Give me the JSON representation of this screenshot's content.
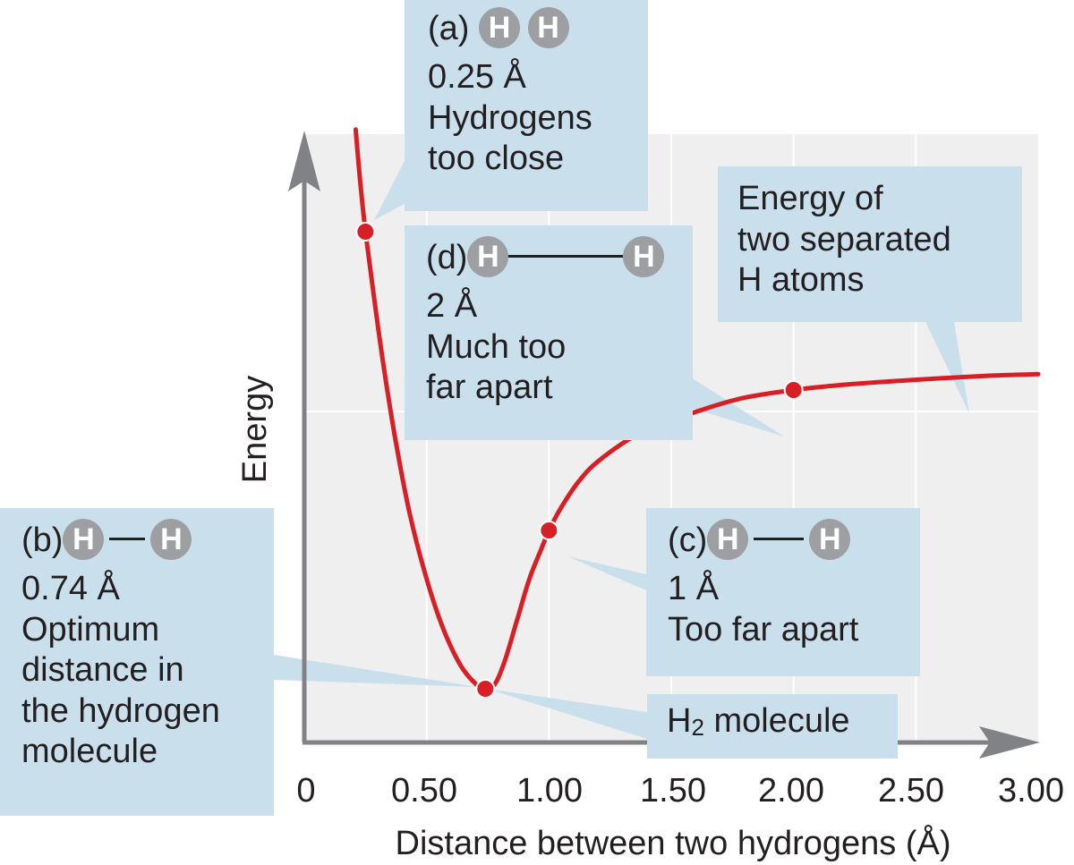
{
  "chart_data": {
    "type": "line",
    "xlabel": "Distance between two hydrogens (Å)",
    "ylabel": "Energy",
    "x_ticks": [
      "0",
      "0.50",
      "1.00",
      "1.50",
      "2.00",
      "2.50",
      "3.00"
    ],
    "xlim": [
      0,
      3.0
    ],
    "ylim": [
      0,
      1
    ],
    "grid": true,
    "series": [
      {
        "x": [
          0.21,
          0.23,
          0.25,
          0.28,
          0.32,
          0.37,
          0.43,
          0.5,
          0.57,
          0.64,
          0.7,
          0.74,
          0.78,
          0.82,
          0.87,
          0.92,
          0.97,
          1.0,
          1.05,
          1.12,
          1.2,
          1.35,
          1.5,
          1.65,
          1.8,
          2.0,
          2.2,
          2.4,
          2.6,
          2.8,
          3.0
        ],
        "y": [
          1.12,
          1.01,
          0.92,
          0.81,
          0.67,
          0.52,
          0.37,
          0.24,
          0.14,
          0.07,
          0.035,
          0.025,
          0.035,
          0.08,
          0.16,
          0.24,
          0.3,
          0.335,
          0.38,
          0.43,
          0.47,
          0.52,
          0.55,
          0.575,
          0.595,
          0.61,
          0.62,
          0.627,
          0.633,
          0.638,
          0.641
        ]
      }
    ],
    "points": [
      {
        "x": 0.25,
        "y": 0.92
      },
      {
        "x": 0.74,
        "y": 0.025
      },
      {
        "x": 1.0,
        "y": 0.335
      },
      {
        "x": 2.0,
        "y": 0.61
      }
    ]
  },
  "callouts": {
    "a": {
      "label": "(a)",
      "atom1": "H",
      "atom2": "H",
      "distance": "0.25 Å",
      "lines": [
        "Hydrogens",
        "too close"
      ]
    },
    "b": {
      "label": "(b)",
      "atom1": "H",
      "atom2": "H",
      "distance": "0.74 Å",
      "lines": [
        "Optimum",
        "distance in",
        "the hydrogen",
        "molecule"
      ]
    },
    "c": {
      "label": "(c)",
      "atom1": "H",
      "atom2": "H",
      "distance": "1 Å",
      "lines": [
        "Too far apart"
      ]
    },
    "d": {
      "label": "(d)",
      "atom1": "H",
      "atom2": "H",
      "distance": "2 Å",
      "lines": [
        "Much too",
        "far apart"
      ]
    },
    "separated": {
      "lines": [
        "Energy of",
        "two separated",
        "H atoms"
      ]
    },
    "molecule": {
      "prefix": "H",
      "subscript": "2",
      "suffix": " molecule"
    }
  },
  "colors": {
    "curve": "#d71f26",
    "callout_fill": "#c9e0ec",
    "plot_fill": "#efefef",
    "axis": "#808285",
    "atom": "#9d9fa2"
  }
}
